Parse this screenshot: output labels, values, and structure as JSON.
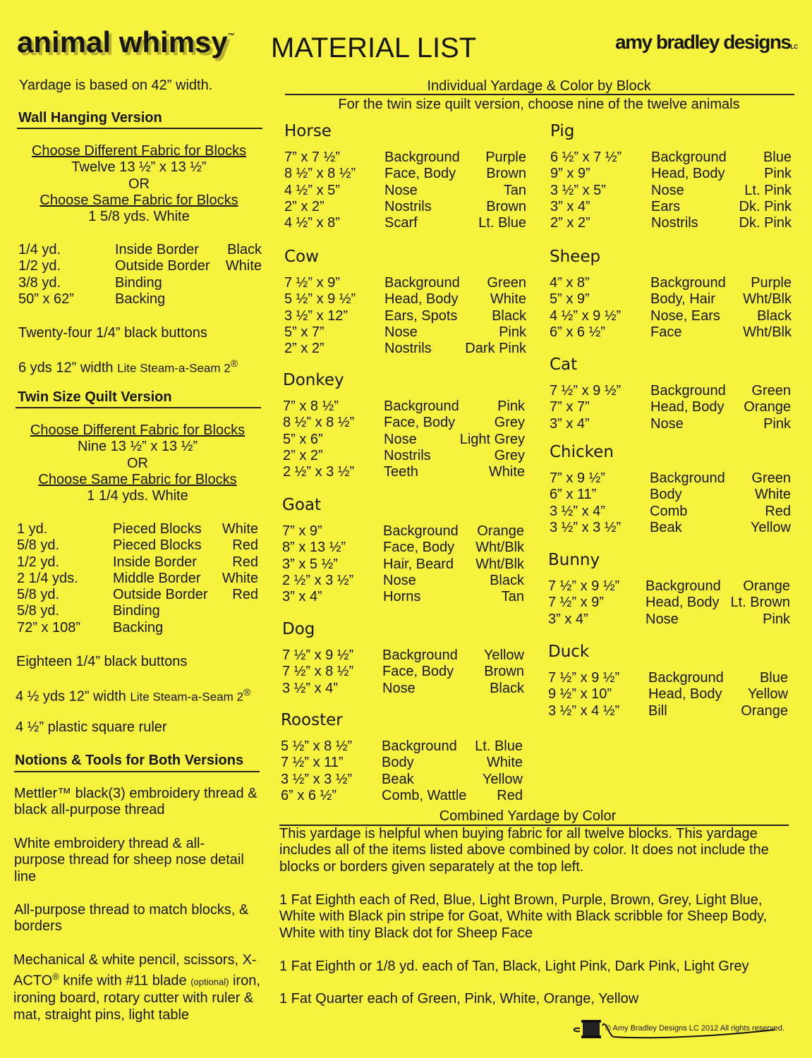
{
  "header": {
    "brand": "animal whimsy",
    "tm": "™",
    "title": "MATERIAL LIST",
    "logo": "amy bradley designs",
    "logo_suffix": "LC"
  },
  "left": {
    "yardage_note": "Yardage is based on 42” width.",
    "wall": {
      "heading": "Wall Hanging Version",
      "diff": "Choose Different Fabric for Blocks",
      "diff_qty": "Twelve 13 ½” x 13 ½”",
      "or": "OR",
      "same": "Choose Same Fabric for Blocks",
      "same_qty": "1 5/8 yds. White",
      "items": [
        [
          "1/4 yd.",
          "Inside Border",
          "Black"
        ],
        [
          "1/2 yd.",
          "Outside Border",
          "White"
        ],
        [
          "3/8 yd.",
          "Binding",
          ""
        ],
        [
          "50” x 62”",
          "Backing",
          ""
        ]
      ],
      "buttons": "Twenty-four 1/4” black buttons",
      "steam_a": "6 yds 12” width",
      "steam_b": "Lite Steam-a-Seam 2",
      "reg": "®"
    },
    "twin": {
      "heading": "Twin Size Quilt Version",
      "diff": "Choose Different Fabric for Blocks",
      "diff_qty": "Nine 13 ½” x 13 ½”",
      "or": "OR",
      "same": "Choose Same Fabric for Blocks",
      "same_qty": "1 1/4 yds. White",
      "items": [
        [
          "1 yd.",
          "Pieced Blocks",
          "White"
        ],
        [
          "5/8 yd.",
          "Pieced Blocks",
          "Red"
        ],
        [
          "1/2 yd.",
          "Inside Border",
          "Red"
        ],
        [
          "2 1/4 yds.",
          "Middle Border",
          "White"
        ],
        [
          "5/8 yd.",
          "Outside Border",
          "Red"
        ],
        [
          "5/8 yd.",
          "Binding",
          ""
        ],
        [
          "72” x 108”",
          "Backing",
          ""
        ]
      ],
      "buttons": "Eighteen 1/4” black buttons",
      "steam_a": "4 ½ yds 12” width",
      "steam_b": "Lite Steam-a-Seam 2",
      "reg": "®",
      "ruler": "4 ½” plastic square ruler"
    },
    "notions": {
      "heading": "Notions & Tools for Both Versions",
      "items": [
        "Mettler™ black(3) embroidery thread & black all-purpose thread",
        "White embroidery thread & all-purpose thread for sheep nose detail line",
        "All-purpose thread to match blocks, & borders"
      ],
      "last_a": "Mechanical & white pencil, scissors, X-ACTO",
      "last_reg": "®",
      "last_b": " knife with #11 blade ",
      "last_opt": "(optional)",
      "last_c": " iron, ironing board, rotary cutter with ruler & mat, straight pins, light table"
    }
  },
  "individual": {
    "heading": "Individual Yardage & Color by Block",
    "subheading": "For the twin size quilt version, choose nine of the twelve animals",
    "blocks": [
      {
        "name": "Horse",
        "rows": [
          [
            "7” x 7 ½”",
            "Background",
            "Purple"
          ],
          [
            "8 ½” x 8 ½”",
            "Face, Body",
            "Brown"
          ],
          [
            "4 ½” x 5”",
            "Nose",
            "Tan"
          ],
          [
            "2” x 2”",
            "Nostrils",
            "Brown"
          ],
          [
            "4 ½” x 8”",
            "Scarf",
            "Lt. Blue"
          ]
        ]
      },
      {
        "name": "Cow",
        "rows": [
          [
            "7 ½” x 9”",
            "Background",
            "Green"
          ],
          [
            "5 ½” x 9 ½”",
            "Head, Body",
            "White"
          ],
          [
            "3 ½” x 12”",
            "Ears, Spots",
            "Black"
          ],
          [
            "5” x 7”",
            "Nose",
            "Pink"
          ],
          [
            "2” x 2”",
            "Nostrils",
            "Dark Pink"
          ]
        ]
      },
      {
        "name": "Donkey",
        "rows": [
          [
            "7” x 8 ½”",
            "Background",
            "Pink"
          ],
          [
            "8 ½” x 8 ½”",
            "Face, Body",
            "Grey"
          ],
          [
            "5” x 6”",
            "Nose",
            "Light Grey"
          ],
          [
            "2” x 2”",
            "Nostrils",
            "Grey"
          ],
          [
            "2 ½” x 3 ½”",
            "Teeth",
            "White"
          ]
        ]
      },
      {
        "name": "Goat",
        "rows": [
          [
            "7” x 9”",
            "Background",
            "Orange"
          ],
          [
            "8” x 13 ½”",
            "Face, Body",
            "Wht/Blk"
          ],
          [
            "3” x 5 ½”",
            "Hair, Beard",
            "Wht/Blk"
          ],
          [
            "2 ½” x 3 ½”",
            "Nose",
            "Black"
          ],
          [
            "3” x 4”",
            "Horns",
            "Tan"
          ]
        ]
      },
      {
        "name": "Dog",
        "rows": [
          [
            "7 ½” x 9 ½”",
            "Background",
            "Yellow"
          ],
          [
            "7 ½” x 8 ½”",
            "Face, Body",
            "Brown"
          ],
          [
            "3 ½” x 4”",
            "Nose",
            "Black"
          ]
        ]
      },
      {
        "name": "Rooster",
        "rows": [
          [
            "5 ½” x 8 ½”",
            "Background",
            "Lt. Blue"
          ],
          [
            "7 ½” x 11”",
            "Body",
            "White"
          ],
          [
            "3 ½” x 3 ½”",
            "Beak",
            "Yellow"
          ],
          [
            "6” x 6 ½”",
            "Comb, Wattle",
            "Red"
          ]
        ]
      },
      {
        "name": "Pig",
        "rows": [
          [
            "6 ½” x 7 ½”",
            "Background",
            "Blue"
          ],
          [
            "9” x 9”",
            "Head, Body",
            "Pink"
          ],
          [
            "3 ½” x 5”",
            "Nose",
            "Lt. Pink"
          ],
          [
            "3” x 4”",
            "Ears",
            "Dk. Pink"
          ],
          [
            "2” x 2”",
            "Nostrils",
            "Dk. Pink"
          ]
        ]
      },
      {
        "name": "Sheep",
        "rows": [
          [
            "4” x 8”",
            "Background",
            "Purple"
          ],
          [
            "5” x 9”",
            "Body, Hair",
            "Wht/Blk"
          ],
          [
            "4 ½” x 9 ½”",
            "Nose, Ears",
            "Black"
          ],
          [
            "6” x 6 ½”",
            "Face",
            "Wht/Blk"
          ]
        ]
      },
      {
        "name": "Cat",
        "rows": [
          [
            "7 ½” x 9 ½”",
            "Background",
            "Green"
          ],
          [
            "7” x 7”",
            "Head, Body",
            "Orange"
          ],
          [
            "3” x 4”",
            "Nose",
            "Pink"
          ]
        ]
      },
      {
        "name": "Chicken",
        "rows": [
          [
            "7” x 9 ½”",
            "Background",
            "Green"
          ],
          [
            "6” x 11”",
            "Body",
            "White"
          ],
          [
            "3 ½” x 4”",
            "Comb",
            "Red"
          ],
          [
            "3 ½” x 3 ½”",
            "Beak",
            "Yellow"
          ]
        ]
      },
      {
        "name": "Bunny",
        "rows": [
          [
            "7 ½” x 9 ½”",
            "Background",
            "Orange"
          ],
          [
            "7 ½” x 9”",
            "Head, Body",
            "Lt. Brown"
          ],
          [
            "3” x 4”",
            "Nose",
            "Pink"
          ]
        ]
      },
      {
        "name": "Duck",
        "rows": [
          [
            "7 ½” x 9 ½”",
            "Background",
            "Blue"
          ],
          [
            "9 ½” x 10”",
            "Head, Body",
            "Yellow"
          ],
          [
            "3 ½” x 4 ½”",
            "Bill",
            "Orange"
          ]
        ]
      }
    ]
  },
  "combined": {
    "heading": "Combined Yardage by Color",
    "paragraphs": [
      "This yardage is helpful when buying fabric for all twelve blocks.  This yardage includes all of the items listed above combined by color.  It does not include the blocks or borders given separately at the top left.",
      "1 Fat Eighth each of Red, Blue, Light Brown, Purple, Brown, Grey, Light Blue, White with Black pin stripe for Goat, White with Black scribble for Sheep Body, White with tiny Black dot for Sheep Face",
      "1 Fat Eighth or 1/8 yd. each of Tan, Black, Light Pink, Dark Pink, Light Grey",
      "1 Fat Quarter each of Green, Pink, White, Orange, Yellow"
    ]
  },
  "footer": {
    "copyright": "© Amy Bradley Designs LC 2012 All rights reserved."
  },
  "colors": {
    "paper": "#f7f23e",
    "ink": "#161616"
  }
}
